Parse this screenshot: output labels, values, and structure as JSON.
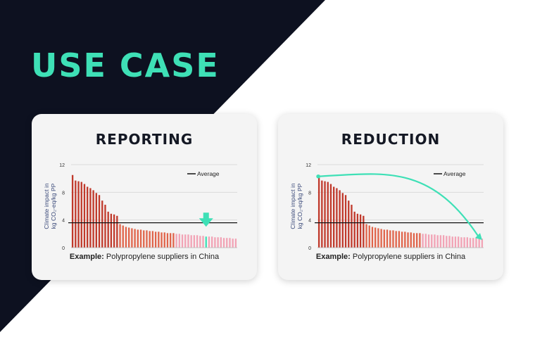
{
  "slide": {
    "title": "USE CASE",
    "colors": {
      "accent": "#3ee0b6",
      "dark": "#0d1120",
      "card_bg": "#f4f4f4"
    }
  },
  "cards": [
    {
      "title": "REPORTING",
      "caption_bold": "Example:",
      "caption_text": " Polypropylene suppliers in China",
      "annotation": "arrow-down-marker"
    },
    {
      "title": "REDUCTION",
      "caption_bold": "Example:",
      "caption_text": " Polypropylene suppliers in China",
      "annotation": "curved-arrow"
    }
  ],
  "chart_data": [
    {
      "type": "bar",
      "ylabel": "Climate impact in kg CO₂-eq/kg PP",
      "ylim": [
        0,
        12
      ],
      "yticks": [
        "12",
        "8",
        "4",
        "0"
      ],
      "grid": true,
      "legend": {
        "position": "top-right",
        "entries": [
          "Average"
        ]
      },
      "average": 3.6,
      "highlight_index": 45,
      "colors": {
        "high": "#c0392b",
        "mid": "#e0644a",
        "low": "#f2a3b5",
        "average_line": "#111111",
        "highlight": "#3ee0b6"
      },
      "values": [
        10.5,
        9.7,
        9.6,
        9.5,
        9.2,
        8.8,
        8.6,
        8.3,
        7.9,
        7.6,
        6.8,
        6.2,
        5.2,
        4.9,
        4.8,
        4.6,
        3.4,
        3.2,
        3.0,
        2.9,
        2.8,
        2.7,
        2.6,
        2.6,
        2.5,
        2.5,
        2.4,
        2.4,
        2.3,
        2.3,
        2.2,
        2.2,
        2.1,
        2.1,
        2.1,
        2.0,
        2.0,
        1.9,
        1.9,
        1.9,
        1.8,
        1.8,
        1.8,
        1.7,
        1.7,
        1.6,
        1.6,
        1.6,
        1.5,
        1.5,
        1.5,
        1.4,
        1.4,
        1.4,
        1.3,
        1.3
      ]
    },
    {
      "type": "bar",
      "ylabel": "Climate impact in kg CO₂-eq/kg PP",
      "ylim": [
        0,
        12
      ],
      "yticks": [
        "12",
        "8",
        "4",
        "0"
      ],
      "grid": true,
      "legend": {
        "position": "top-right",
        "entries": [
          "Average"
        ]
      },
      "average": 3.6,
      "highlight_index": null,
      "colors": {
        "high": "#c0392b",
        "mid": "#e0644a",
        "low": "#f2a3b5",
        "average_line": "#111111",
        "highlight": "#3ee0b6"
      },
      "values": [
        10.5,
        9.7,
        9.6,
        9.5,
        9.2,
        8.8,
        8.6,
        8.3,
        7.9,
        7.6,
        6.8,
        6.2,
        5.2,
        4.9,
        4.8,
        4.6,
        3.4,
        3.2,
        3.0,
        2.9,
        2.8,
        2.7,
        2.6,
        2.6,
        2.5,
        2.5,
        2.4,
        2.4,
        2.3,
        2.3,
        2.2,
        2.2,
        2.1,
        2.1,
        2.1,
        2.0,
        2.0,
        1.9,
        1.9,
        1.9,
        1.8,
        1.8,
        1.8,
        1.7,
        1.7,
        1.6,
        1.6,
        1.6,
        1.5,
        1.5,
        1.5,
        1.4,
        1.4,
        1.4,
        1.3,
        1.3
      ]
    }
  ]
}
